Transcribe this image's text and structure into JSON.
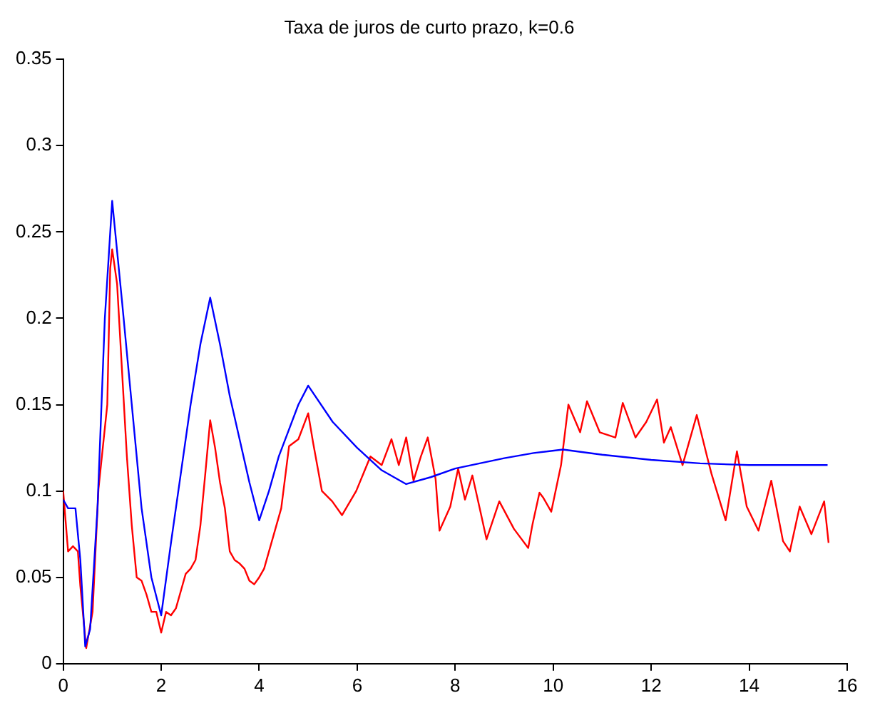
{
  "chart_data": {
    "type": "line",
    "title": "Taxa de juros de curto prazo, k=0.6",
    "xlim": [
      0,
      16
    ],
    "xticks": [
      0,
      2,
      4,
      6,
      8,
      10,
      12,
      14,
      16
    ],
    "ylim": [
      0,
      0.35
    ],
    "yticks": [
      0,
      0.05,
      0.1,
      0.15,
      0.2,
      0.25,
      0.3,
      0.35
    ],
    "grid": false,
    "legend": false,
    "marker": "none",
    "line_style": "solid",
    "series": [
      {
        "color": "#0000ff",
        "x": [
          0,
          0.1,
          0.25,
          0.35,
          0.45,
          0.55,
          0.7,
          0.85,
          1.0,
          1.2,
          1.4,
          1.6,
          1.8,
          2.0,
          2.2,
          2.4,
          2.6,
          2.8,
          3.0,
          3.2,
          3.4,
          3.6,
          3.8,
          4.0,
          4.2,
          4.4,
          4.6,
          4.8,
          5.0,
          5.5,
          6.0,
          6.5,
          7.0,
          7.5,
          8.0,
          9.0,
          9.6,
          10.2,
          11,
          12,
          13,
          14,
          15.6
        ],
        "values": [
          0.095,
          0.09,
          0.09,
          0.06,
          0.01,
          0.02,
          0.09,
          0.2,
          0.268,
          0.21,
          0.15,
          0.09,
          0.05,
          0.028,
          0.07,
          0.11,
          0.15,
          0.185,
          0.212,
          0.185,
          0.155,
          0.13,
          0.105,
          0.083,
          0.1,
          0.12,
          0.135,
          0.15,
          0.161,
          0.14,
          0.125,
          0.112,
          0.104,
          0.108,
          0.113,
          0.119,
          0.122,
          0.124,
          0.121,
          0.118,
          0.116,
          0.115,
          0.115
        ]
      },
      {
        "color": "#ff0000",
        "x": [
          0,
          0.1,
          0.2,
          0.3,
          0.35,
          0.47,
          0.6,
          0.72,
          0.9,
          0.96,
          1.0,
          1.1,
          1.2,
          1.3,
          1.4,
          1.5,
          1.6,
          1.7,
          1.8,
          1.9,
          2.0,
          2.1,
          2.2,
          2.3,
          2.5,
          2.6,
          2.7,
          2.8,
          2.9,
          3.0,
          3.1,
          3.2,
          3.3,
          3.4,
          3.5,
          3.6,
          3.7,
          3.8,
          3.9,
          4.0,
          4.1,
          4.2,
          4.32,
          4.45,
          4.61,
          4.8,
          5.0,
          5.1,
          5.28,
          5.49,
          5.69,
          5.98,
          6.27,
          6.5,
          6.7,
          6.85,
          7.0,
          7.15,
          7.3,
          7.44,
          7.6,
          7.68,
          7.9,
          8.06,
          8.2,
          8.35,
          8.5,
          8.64,
          8.9,
          9.2,
          9.49,
          9.58,
          9.72,
          9.8,
          9.96,
          10.16,
          10.31,
          10.55,
          10.69,
          10.95,
          11.27,
          11.42,
          11.68,
          11.9,
          12.12,
          12.26,
          12.4,
          12.64,
          12.93,
          13.14,
          13.23,
          13.52,
          13.75,
          13.95,
          14.19,
          14.45,
          14.69,
          14.83,
          15.03,
          15.27,
          15.53,
          15.62
        ],
        "values": [
          0.1,
          0.065,
          0.068,
          0.065,
          0.045,
          0.009,
          0.03,
          0.101,
          0.15,
          0.229,
          0.24,
          0.22,
          0.17,
          0.12,
          0.08,
          0.05,
          0.048,
          0.04,
          0.03,
          0.03,
          0.018,
          0.03,
          0.028,
          0.032,
          0.052,
          0.055,
          0.06,
          0.08,
          0.11,
          0.141,
          0.125,
          0.105,
          0.09,
          0.065,
          0.06,
          0.058,
          0.055,
          0.048,
          0.046,
          0.05,
          0.055,
          0.065,
          0.077,
          0.09,
          0.126,
          0.13,
          0.145,
          0.128,
          0.1,
          0.094,
          0.086,
          0.1,
          0.12,
          0.115,
          0.13,
          0.115,
          0.131,
          0.106,
          0.12,
          0.131,
          0.107,
          0.077,
          0.091,
          0.113,
          0.095,
          0.109,
          0.09,
          0.072,
          0.094,
          0.078,
          0.067,
          0.081,
          0.099,
          0.096,
          0.088,
          0.115,
          0.15,
          0.134,
          0.152,
          0.134,
          0.131,
          0.151,
          0.131,
          0.14,
          0.153,
          0.128,
          0.137,
          0.115,
          0.144,
          0.12,
          0.11,
          0.083,
          0.123,
          0.091,
          0.077,
          0.106,
          0.071,
          0.065,
          0.091,
          0.075,
          0.094,
          0.07
        ]
      }
    ]
  }
}
